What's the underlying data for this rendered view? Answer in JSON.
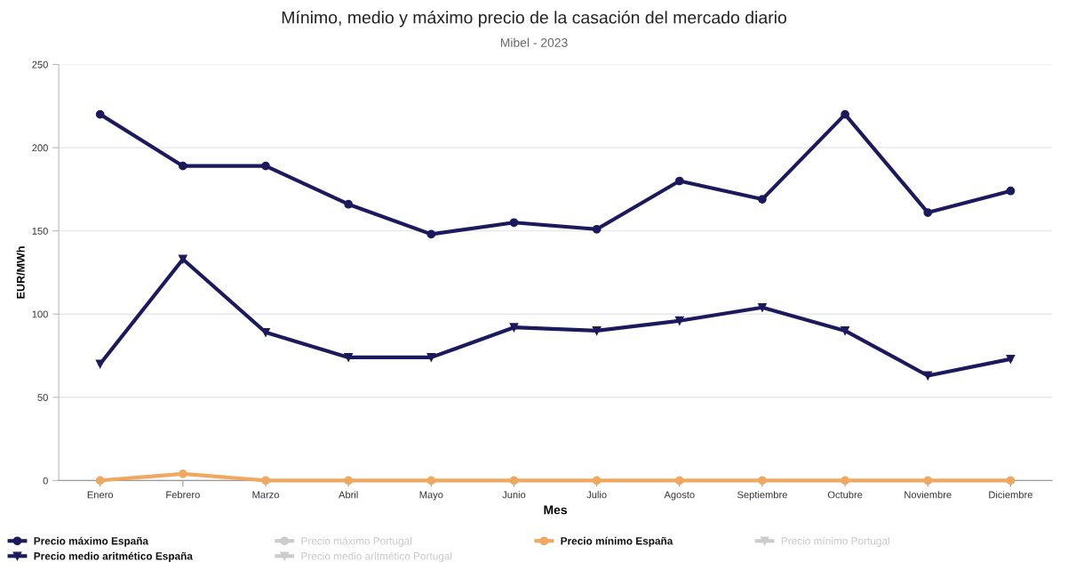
{
  "chart_data": {
    "type": "line",
    "title": "Mínimo, medio y máximo precio de la casación del mercado diario",
    "subtitle": "Mibel - 2023",
    "xlabel": "Mes",
    "ylabel": "EUR/MWh",
    "categories": [
      "Enero",
      "Febrero",
      "Marzo",
      "Abril",
      "Mayo",
      "Junio",
      "Julio",
      "Agosto",
      "Septiembre",
      "Octubre",
      "Noviembre",
      "Diciembre"
    ],
    "series": [
      {
        "name": "Precio máximo España",
        "color": "#1c1a5c",
        "marker": "circle",
        "values": [
          220,
          189,
          189,
          166,
          148,
          155,
          151,
          180,
          169,
          220,
          161,
          174
        ]
      },
      {
        "name": "Precio medio aritmético España",
        "color": "#1c1a5c",
        "marker": "triangle",
        "values": [
          70,
          133,
          89,
          74,
          74,
          92,
          90,
          96,
          104,
          90,
          63,
          73
        ]
      },
      {
        "name": "Precio máximo Portugal",
        "color": "#cccccc",
        "marker": "circle",
        "values": [
          null,
          null,
          null,
          null,
          null,
          null,
          null,
          null,
          null,
          null,
          null,
          null
        ]
      },
      {
        "name": "Precio medio aritmético Portugal",
        "color": "#cccccc",
        "marker": "triangle",
        "values": [
          null,
          null,
          null,
          null,
          null,
          null,
          null,
          null,
          null,
          null,
          null,
          null
        ]
      },
      {
        "name": "Precio mínimo España",
        "color": "#f0a860",
        "marker": "circle",
        "values": [
          0,
          4,
          0,
          0,
          0,
          0,
          0,
          0,
          0,
          0,
          0,
          0
        ]
      },
      {
        "name": "Precio mínimo Portugal",
        "color": "#cccccc",
        "marker": "triangle",
        "values": [
          null,
          null,
          null,
          null,
          null,
          null,
          null,
          null,
          null,
          null,
          null,
          null
        ]
      }
    ],
    "ylim": [
      0,
      250
    ],
    "yticks": [
      0,
      50,
      100,
      150,
      200,
      250
    ],
    "grid": "y",
    "legend": "bottom",
    "line_style": "solid"
  }
}
